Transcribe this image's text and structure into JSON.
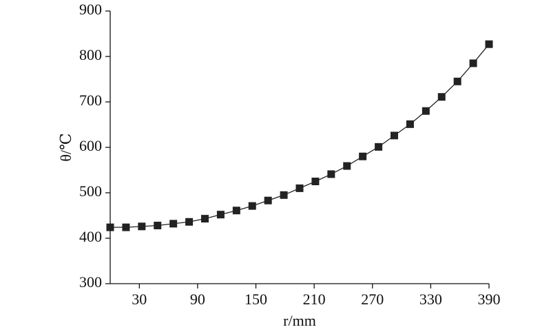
{
  "chart_data": {
    "type": "line",
    "x_label": "r/mm",
    "y_label": "θ/℃",
    "x": [
      0,
      16.25,
      32.5,
      48.75,
      65,
      81.25,
      97.5,
      113.75,
      130,
      146.25,
      162.5,
      178.75,
      195,
      211.25,
      227.5,
      243.75,
      260,
      276.25,
      292.5,
      308.75,
      325,
      341.25,
      357.5,
      373.75,
      390
    ],
    "series": [
      {
        "color": "#222222",
        "values": [
          424,
          424,
          426,
          428,
          432,
          436,
          443,
          452,
          461,
          471,
          483,
          495,
          510,
          525,
          541,
          559,
          580,
          601,
          626,
          651,
          680,
          711,
          745,
          785,
          827
        ]
      }
    ],
    "xlim": [
      0,
      390
    ],
    "xticks": [
      30,
      90,
      150,
      210,
      270,
      330,
      390
    ],
    "ylim": [
      300,
      900
    ],
    "yticks": [
      300,
      400,
      500,
      600,
      700,
      800,
      900
    ],
    "grid": false
  }
}
